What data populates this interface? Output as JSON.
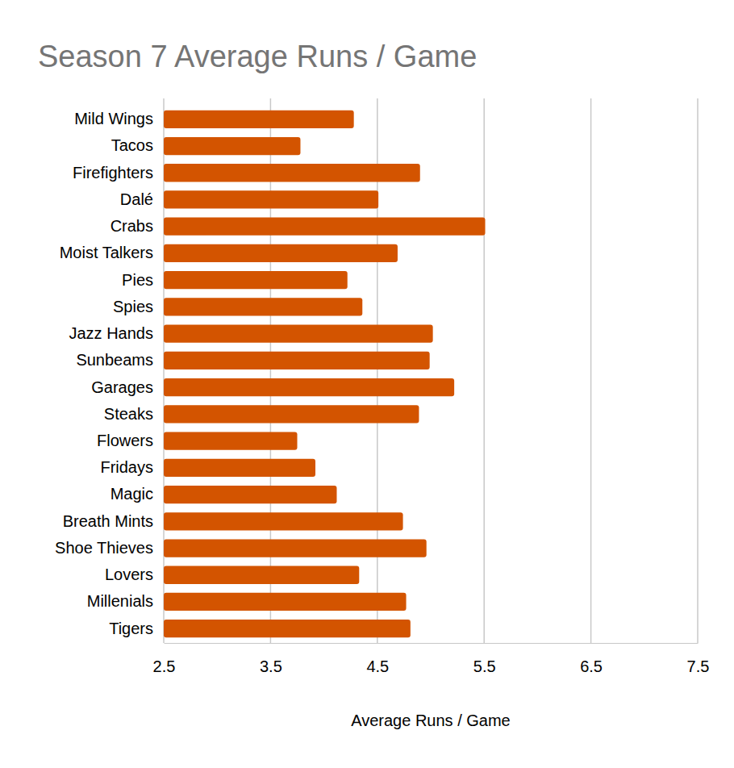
{
  "chart_data": {
    "type": "bar",
    "orientation": "horizontal",
    "title": "Season 7 Average Runs / Game",
    "x_label": "Average Runs / Game",
    "categories": [
      "Mild Wings",
      "Tacos",
      "Firefighters",
      "Dalé",
      "Crabs",
      "Moist Talkers",
      "Pies",
      "Spies",
      "Jazz Hands",
      "Sunbeams",
      "Garages",
      "Steaks",
      "Flowers",
      "Fridays",
      "Magic",
      "Breath Mints",
      "Shoe Thieves",
      "Lovers",
      "Millenials",
      "Tigers"
    ],
    "values": [
      4.28,
      3.78,
      4.9,
      4.51,
      5.51,
      4.69,
      4.22,
      4.36,
      5.02,
      4.99,
      5.22,
      4.89,
      3.75,
      3.92,
      4.12,
      4.74,
      4.96,
      4.33,
      4.77,
      4.81
    ],
    "color": "#d35400",
    "xlim": [
      2.5,
      7.5
    ],
    "xticks": [
      2.5,
      3.5,
      4.5,
      5.5,
      6.5,
      7.5
    ],
    "grid": true
  }
}
